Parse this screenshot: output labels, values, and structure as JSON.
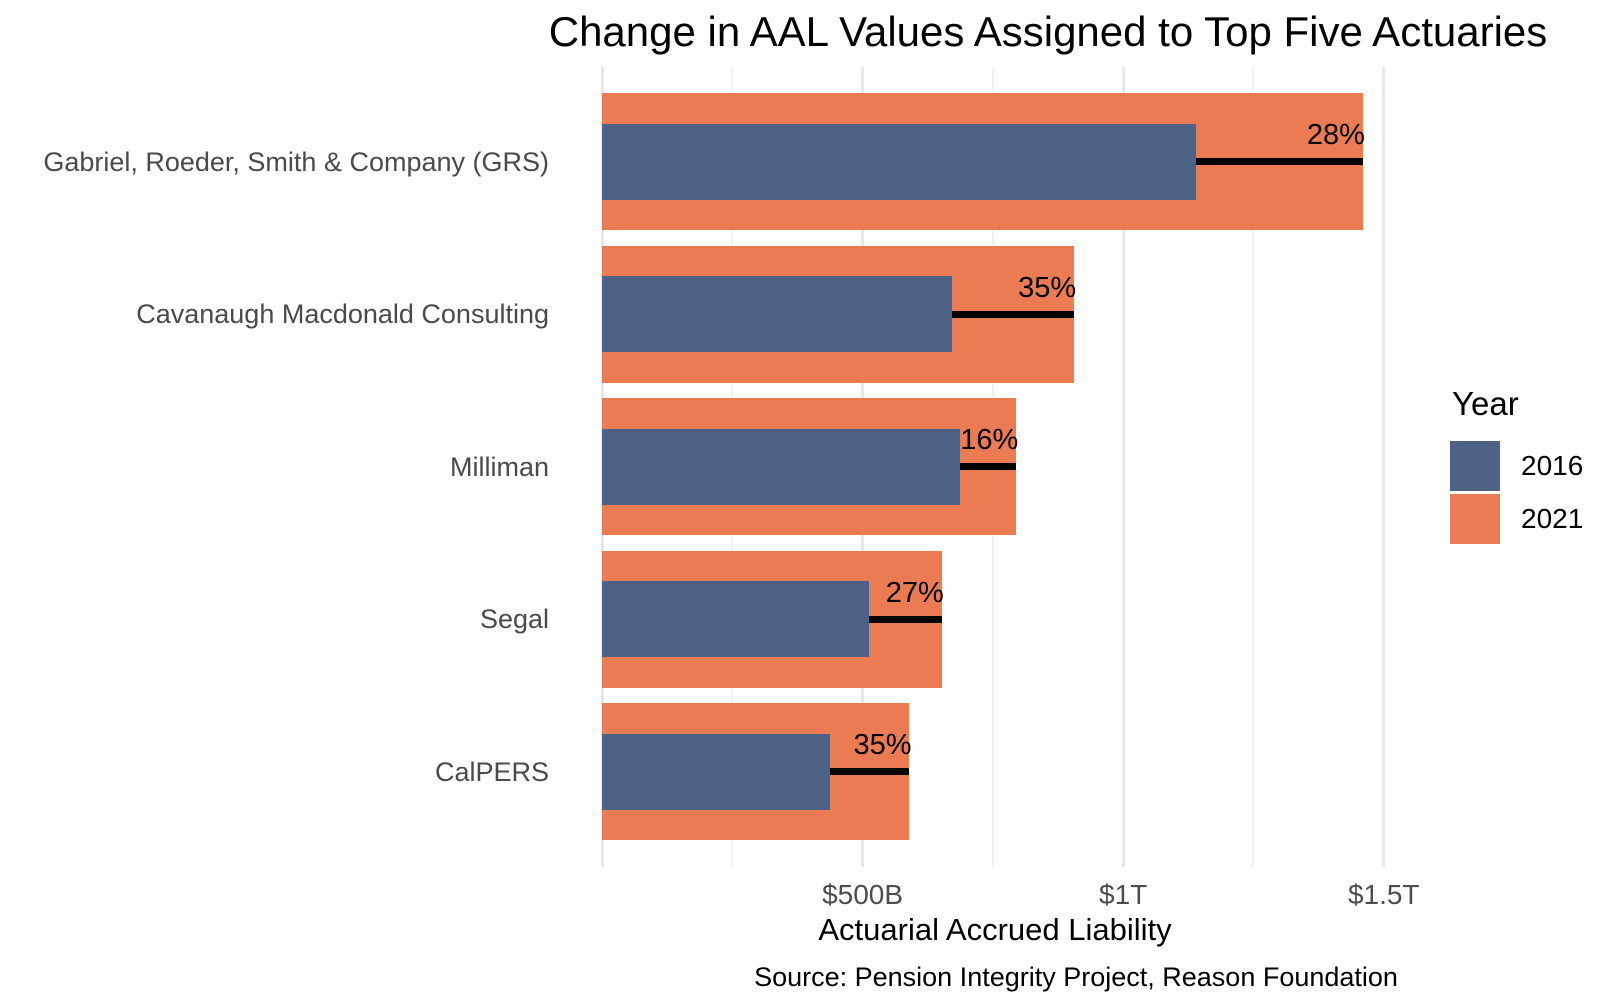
{
  "chart_data": {
    "type": "bar",
    "orientation": "horizontal",
    "title": "Change in AAL Values Assigned to Top Five Actuaries",
    "xlabel": "Actuarial Accrued Liability",
    "caption": "Source: Pension Integrity Project, Reason Foundation",
    "values_unit": "USD billions",
    "categories": [
      "Gabriel, Roeder, Smith & Company (GRS)",
      "Cavanaugh Macdonald Consulting",
      "Milliman",
      "Segal",
      "CalPERS"
    ],
    "series": [
      {
        "name": "2016",
        "color": "#4d6284",
        "values": [
          1140,
          672,
          687,
          512,
          437
        ]
      },
      {
        "name": "2021",
        "color": "#ea7b52",
        "values": [
          1460,
          906,
          795,
          652,
          590
        ]
      }
    ],
    "change_labels": [
      "28%",
      "35%",
      "16%",
      "27%",
      "35%"
    ],
    "x_ticks": [
      {
        "label": "$500B",
        "value": 500
      },
      {
        "label": "$1T",
        "value": 1000
      },
      {
        "label": "$1.5T",
        "value": 1500
      }
    ],
    "x_minor_ticks": [
      250,
      750,
      1250
    ],
    "xlim": [
      0,
      1535
    ],
    "grid": "vertical major+minor, light gray on white",
    "connector_color": "#000000",
    "legend": {
      "title": "Year",
      "position": "right",
      "entries": [
        {
          "label": "2016",
          "color": "#4d6284"
        },
        {
          "label": "2021",
          "color": "#ea7b52"
        }
      ]
    }
  }
}
